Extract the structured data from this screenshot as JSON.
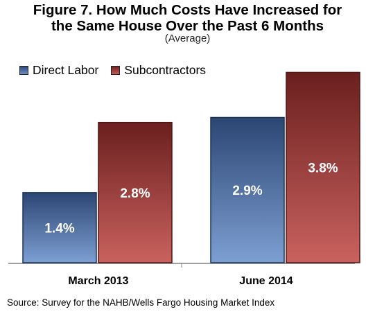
{
  "chart_data": {
    "type": "bar",
    "title_line1": "Figure 7. How Much Costs Have Increased for",
    "title_line2": "the Same House Over the Past 6 Months",
    "subtitle": "(Average)",
    "categories": [
      "March 2013",
      "June 2014"
    ],
    "series": [
      {
        "name": "Direct Labor",
        "values": [
          1.4,
          2.9
        ],
        "labels": [
          "1.4%",
          "2.9%"
        ],
        "color": "#4a6fa5"
      },
      {
        "name": "Subcontractors",
        "values": [
          2.8,
          3.8
        ],
        "labels": [
          "2.8%",
          "3.8%"
        ],
        "color": "#b04a48"
      }
    ],
    "ylim": [
      0,
      4
    ],
    "grid": false,
    "legend_position": "top-left",
    "source": "Source: Survey for the NAHB/Wells Fargo Housing Market Index"
  }
}
